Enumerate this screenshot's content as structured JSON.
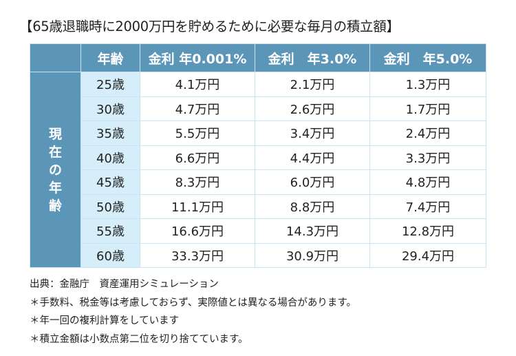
{
  "title": "【65歳退職時に2000万円を貯めるために必要な毎月の積立額】",
  "table": {
    "corner": "",
    "headers": [
      "年齢",
      "金利 年0.001%",
      "金利　年3.0%",
      "金利　年5.0%"
    ],
    "row_group_label": [
      "現",
      "在",
      "の",
      "年",
      "齢"
    ],
    "rows": [
      {
        "age": "25歳",
        "v": [
          "4.1万円",
          "2.1万円",
          "1.3万円"
        ]
      },
      {
        "age": "30歳",
        "v": [
          "4.7万円",
          "2.6万円",
          "1.7万円"
        ]
      },
      {
        "age": "35歳",
        "v": [
          "5.5万円",
          "3.4万円",
          "2.4万円"
        ]
      },
      {
        "age": "40歳",
        "v": [
          "6.6万円",
          "4.4万円",
          "3.3万円"
        ]
      },
      {
        "age": "45歳",
        "v": [
          "8.3万円",
          "6.0万円",
          "4.8万円"
        ]
      },
      {
        "age": "50歳",
        "v": [
          "11.1万円",
          "8.8万円",
          "7.4万円"
        ]
      },
      {
        "age": "55歳",
        "v": [
          "16.6万円",
          "14.3万円",
          "12.8万円"
        ]
      },
      {
        "age": "60歳",
        "v": [
          "33.3万円",
          "30.9万円",
          "29.4万円"
        ]
      }
    ]
  },
  "notes": [
    "出典：金融庁　資産運用シミュレーション",
    "＊手数料、税金等は考慮しておらず、実際値とは異なる場合があります。",
    "＊年一回の複利計算をしています",
    "＊積立金額は小数点第二位を切り捨てています。"
  ],
  "colors": {
    "header": "#5b95b8",
    "age_bg": "#d6eef9",
    "grid": "#c9e3f3"
  }
}
